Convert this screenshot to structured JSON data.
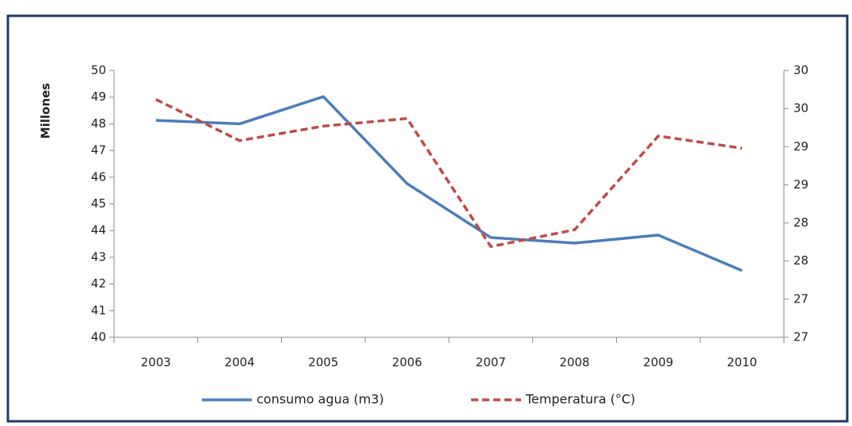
{
  "chart_data": {
    "type": "line",
    "categories": [
      "2003",
      "2004",
      "2005",
      "2006",
      "2007",
      "2008",
      "2009",
      "2010"
    ],
    "ylabel": "Millones",
    "ylim": [
      40,
      50
    ],
    "yticks": [
      40,
      41,
      42,
      43,
      44,
      45,
      46,
      47,
      48,
      49,
      50
    ],
    "y2lim": [
      26.5,
      30
    ],
    "y2ticks": [
      {
        "value": 26.5,
        "label": "27"
      },
      27,
      {
        "value": 27.5,
        "label": "28"
      },
      28,
      {
        "value": 28.5,
        "label": "29"
      },
      29,
      {
        "value": 29.5,
        "label": "30"
      },
      30
    ],
    "grid": false,
    "legend": "bottom",
    "series": [
      {
        "name": "consumo agua (m3)",
        "color": "#4a7ebb",
        "dash": false,
        "values": [
          48.13,
          48.0,
          49.02,
          45.76,
          43.74,
          43.53,
          43.83,
          42.5
        ]
      },
      {
        "name": "Temperatura (°C)",
        "color": "#be4b48",
        "dash": true,
        "axis": "y2",
        "values": [
          29.62,
          29.08,
          29.27,
          29.37,
          27.69,
          27.91,
          29.14,
          28.98
        ]
      }
    ]
  }
}
